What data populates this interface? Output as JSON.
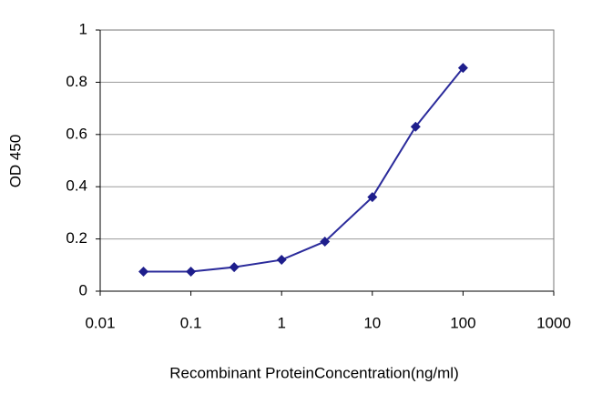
{
  "chart_data": {
    "type": "line",
    "x_label": "Recombinant ProteinConcentration(ng/ml)",
    "y_label": "OD 450",
    "x": [
      0.03,
      0.1,
      0.3,
      1,
      3,
      10,
      30,
      100
    ],
    "values": [
      0.075,
      0.075,
      0.092,
      0.12,
      0.19,
      0.36,
      0.63,
      0.855
    ],
    "color": "#2b2b9b",
    "x_log": true,
    "xlim": [
      0.01,
      1000
    ],
    "xticks": [
      0.01,
      0.1,
      1,
      10,
      100,
      1000
    ],
    "ylim": [
      0,
      1
    ],
    "yticks": [
      0,
      0.2,
      0.4,
      0.6,
      0.8,
      1
    ],
    "grid": true
  }
}
